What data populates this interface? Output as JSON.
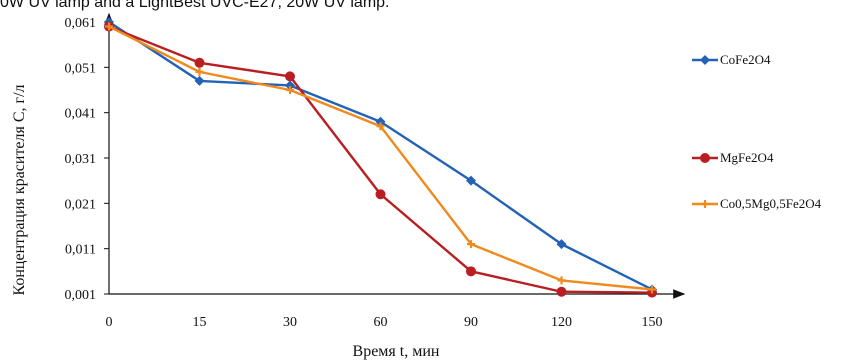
{
  "caption": "0W UV lamp and a LightBest UVC-E27, 20W UV lamp.",
  "chart_data": {
    "type": "line",
    "title": "",
    "xlabel": "Время t, мин",
    "ylabel": "Концентрация красителя С, г/л",
    "categories": [
      "0",
      "15",
      "30",
      "60",
      "90",
      "120",
      "150"
    ],
    "y_ticks": [
      "0,001",
      "0,011",
      "0,021",
      "0,031",
      "0,041",
      "0,051",
      "0,061"
    ],
    "ylim": [
      0.001,
      0.061
    ],
    "grid": false,
    "legend_position": "right",
    "series": [
      {
        "name": "CoFe2O4",
        "color": "#2462b8",
        "marker": "diamond",
        "values": [
          0.061,
          0.048,
          0.047,
          0.039,
          0.026,
          0.012,
          0.002
        ]
      },
      {
        "name": "MgFe2O4",
        "color": "#b81e22",
        "marker": "circle",
        "values": [
          0.06,
          0.052,
          0.049,
          0.023,
          0.006,
          0.0015,
          0.0013
        ]
      },
      {
        "name": "Co0,5Mg0,5Fe2O4",
        "color": "#f08a1e",
        "marker": "cross",
        "values": [
          0.06,
          0.05,
          0.046,
          0.038,
          0.012,
          0.004,
          0.002
        ]
      }
    ]
  }
}
